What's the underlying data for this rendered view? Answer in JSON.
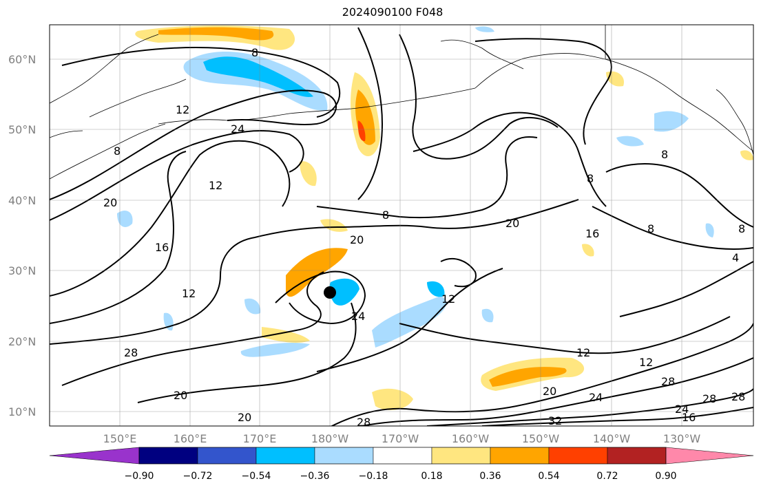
{
  "title": "2024090100 F048",
  "lat_labels": [
    "60°N",
    "50°N",
    "40°N",
    "30°N",
    "20°N",
    "10°N"
  ],
  "lon_labels": [
    "150°E",
    "160°E",
    "170°E",
    "180°W",
    "170°W",
    "160°W",
    "150°W",
    "140°W",
    "130°W"
  ],
  "colorbar": {
    "levels": [
      "−0.90",
      "−0.72",
      "−0.54",
      "−0.36",
      "−0.18",
      "0.18",
      "0.36",
      "0.54",
      "0.72",
      "0.90"
    ],
    "colors": [
      "#9933cc",
      "#000080",
      "#3355cc",
      "#00bfff",
      "#aadcff",
      "#ffffff",
      "#ffe680",
      "#ffa500",
      "#ff4000",
      "#b22222",
      "#ff88aa"
    ]
  },
  "contour_labels": [
    "12",
    "24",
    "8",
    "12",
    "20",
    "8",
    "20",
    "20",
    "16",
    "16",
    "12",
    "12",
    "24",
    "8",
    "12",
    "12",
    "28",
    "28",
    "28",
    "20",
    "20",
    "24",
    "28",
    "32",
    "20",
    "28",
    "8",
    "8",
    "4",
    "8",
    "24",
    "16",
    "8"
  ],
  "marker": "storm-center-dot"
}
